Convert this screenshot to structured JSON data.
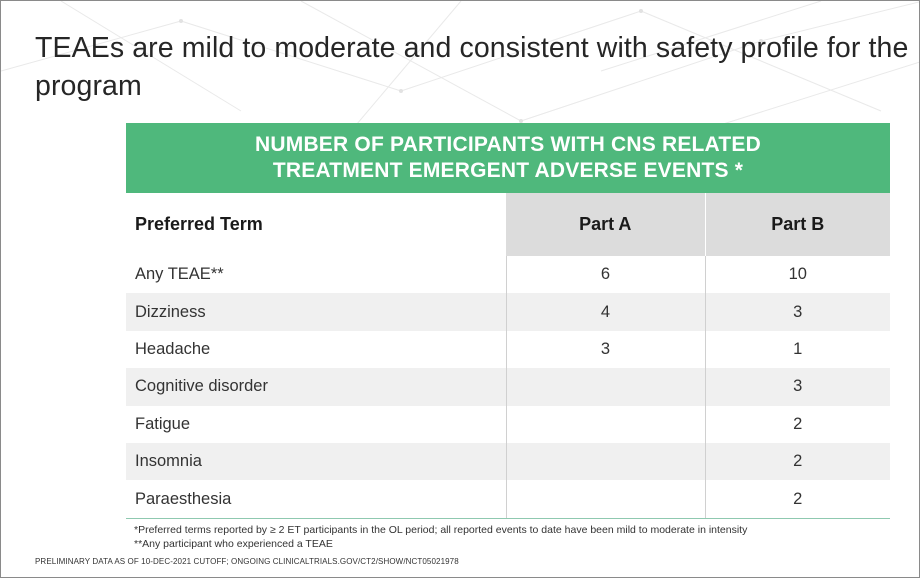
{
  "slide": {
    "title": "TEAEs are mild to moderate and consistent with safety profile for the program"
  },
  "table": {
    "heading_line1": "NUMBER OF PARTICIPANTS WITH CNS RELATED",
    "heading_line2": "TREATMENT EMERGENT ADVERSE EVENTS *",
    "columns": [
      "Preferred Term",
      "Part A",
      "Part B"
    ],
    "rows": [
      {
        "term": "Any TEAE**",
        "part_a": "6",
        "part_b": "10"
      },
      {
        "term": "Dizziness",
        "part_a": "4",
        "part_b": "3"
      },
      {
        "term": "Headache",
        "part_a": "3",
        "part_b": "1"
      },
      {
        "term": "Cognitive disorder",
        "part_a": "",
        "part_b": "3"
      },
      {
        "term": "Fatigue",
        "part_a": "",
        "part_b": "2"
      },
      {
        "term": "Insomnia",
        "part_a": "",
        "part_b": "2"
      },
      {
        "term": "Paraesthesia",
        "part_a": "",
        "part_b": "2"
      }
    ],
    "colors": {
      "header_band": "#4fb87c",
      "column_header_bg": "#dcdcdc",
      "stripe": "#f0f0f0"
    }
  },
  "footnotes": {
    "line1": "*Preferred terms reported by ≥ 2 ET participants in the OL period; all reported events to date have been mild to moderate in intensity",
    "line2": "**Any participant who experienced a TEAE"
  },
  "source_note": "PRELIMINARY DATA AS OF 10-DEC-2021 CUTOFF; ONGOING CLINICALTRIALS.GOV/CT2/SHOW/NCT05021978"
}
